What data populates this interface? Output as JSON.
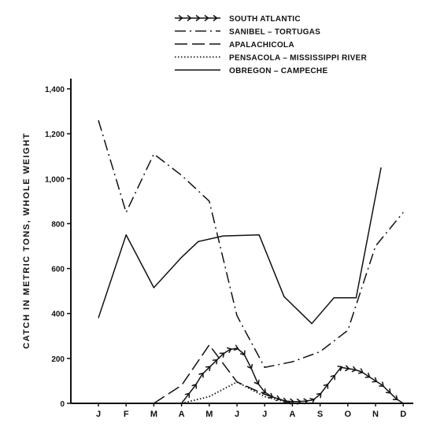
{
  "chart_data": {
    "type": "line",
    "title": "",
    "ylabel": "CATCH IN METRIC TONS, WHOLE WEIGHT",
    "xlabel": "",
    "categories": [
      "J",
      "F",
      "M",
      "A",
      "M",
      "J",
      "J",
      "A",
      "S",
      "O",
      "N",
      "D"
    ],
    "yticks": [
      "0",
      "200",
      "400",
      "600",
      "800",
      "1,000",
      "1,200",
      "1,400"
    ],
    "ylim": [
      0,
      1400
    ],
    "legend_position": "top-center",
    "grid": false,
    "series": [
      {
        "name": "SOUTH ATLANTIC",
        "style": "arrows",
        "x": [
          3,
          3.25,
          3.5,
          3.75,
          4,
          4.25,
          4.5,
          4.75,
          5,
          5.25,
          5.5,
          5.75,
          6,
          6.25,
          6.5,
          6.75,
          7,
          7.25,
          7.5,
          7.75,
          8,
          8.25,
          8.5,
          8.75,
          9,
          9.25,
          9.5,
          9.75,
          10,
          10.25,
          10.5,
          10.75,
          11
        ],
        "values": [
          0,
          40,
          80,
          130,
          160,
          190,
          220,
          240,
          245,
          220,
          160,
          90,
          50,
          30,
          20,
          10,
          8,
          8,
          10,
          15,
          40,
          80,
          120,
          160,
          155,
          150,
          140,
          120,
          100,
          80,
          50,
          20,
          0
        ]
      },
      {
        "name": "SANIBEL – TORTUGAS",
        "style": "dashdot",
        "x": [
          0,
          1,
          2,
          3,
          4,
          5,
          6,
          7,
          8,
          9,
          10,
          11
        ],
        "values": [
          1260,
          850,
          1110,
          1015,
          900,
          390,
          160,
          185,
          230,
          325,
          700,
          850
        ]
      },
      {
        "name": "APALACHICOLA",
        "style": "longdash",
        "x": [
          2,
          3,
          4,
          5,
          6,
          7
        ],
        "values": [
          0,
          80,
          260,
          95,
          40,
          0
        ]
      },
      {
        "name": "PENSACOLA – MISSISSIPPI RIVER",
        "style": "dotted",
        "x": [
          3,
          4,
          5,
          6,
          7
        ],
        "values": [
          0,
          30,
          95,
          30,
          0
        ]
      },
      {
        "name": "OBREGON – CAMPECHE",
        "style": "solid",
        "x": [
          0,
          1,
          2,
          3,
          3.6,
          4.5,
          5.8,
          6.7,
          7.7,
          8.5,
          9.3,
          10.2
        ],
        "values": [
          380,
          750,
          515,
          650,
          720,
          745,
          750,
          475,
          355,
          470,
          470,
          1050
        ]
      }
    ]
  },
  "colors": {
    "ink": "#111111",
    "background": "#ffffff"
  }
}
